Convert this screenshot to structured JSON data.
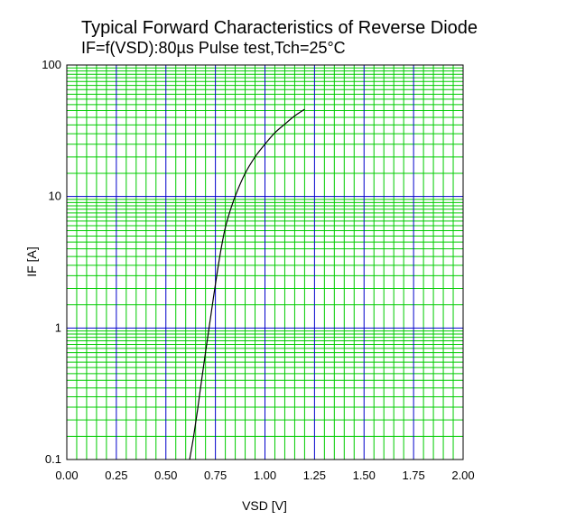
{
  "chart_data": {
    "type": "line",
    "title": "Typical Forward Characteristics of Reverse Diode",
    "subtitle": "IF=f(VSD):80µs Pulse test,Tch=25°C",
    "xlabel": "VSD [V]",
    "ylabel": "IF [A]",
    "xlim": [
      0,
      2
    ],
    "ylim": [
      0.1,
      100
    ],
    "yscale": "log",
    "grid": true,
    "x_ticks": [
      "0.00",
      "0.25",
      "0.50",
      "0.75",
      "1.00",
      "1.25",
      "1.50",
      "1.75",
      "2.00"
    ],
    "y_ticks": [
      "0.1",
      "1",
      "10",
      "100"
    ],
    "colors": {
      "minor_grid": "#00cc00",
      "major_grid": "#0000cc",
      "curve": "#000000"
    },
    "series": [
      {
        "x": [
          0.62,
          0.64,
          0.66,
          0.68,
          0.7,
          0.72,
          0.74,
          0.76,
          0.78,
          0.8,
          0.83,
          0.86,
          0.9,
          0.95,
          1.0,
          1.05,
          1.1,
          1.15,
          1.2
        ],
        "y": [
          0.1,
          0.15,
          0.24,
          0.4,
          0.65,
          1.05,
          1.7,
          2.7,
          4.1,
          5.8,
          8.3,
          11,
          15,
          20,
          25,
          30.5,
          35.5,
          41,
          46
        ]
      }
    ]
  }
}
